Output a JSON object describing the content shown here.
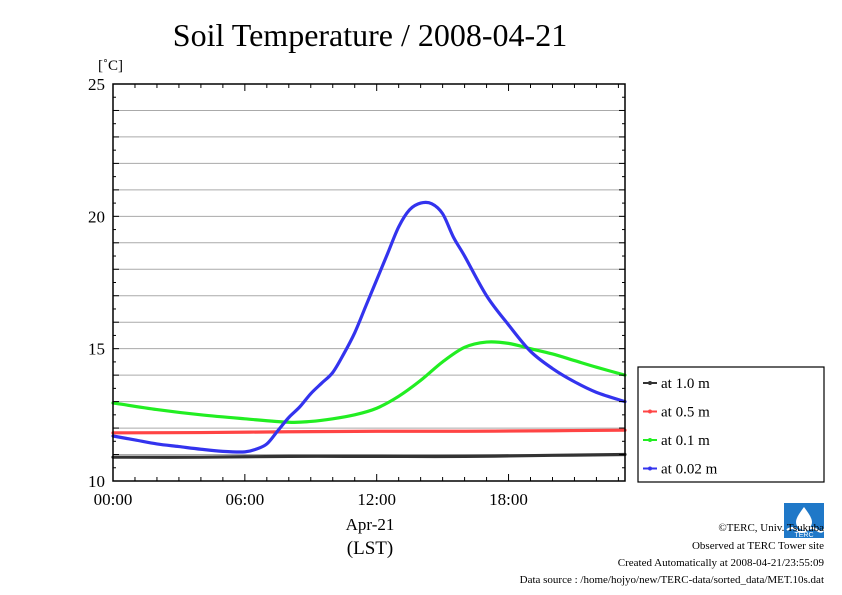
{
  "chart_data": {
    "type": "line",
    "title": "Soil Temperature / 2008-04-21",
    "ylabel": "[˚C]",
    "ylim": [
      10,
      25
    ],
    "xlim": [
      0,
      23.3
    ],
    "yticks": [
      10,
      15,
      20,
      25
    ],
    "xticks": [
      {
        "value": 0,
        "label": "00:00"
      },
      {
        "value": 6,
        "label": "06:00"
      },
      {
        "value": 12,
        "label": "12:00"
      },
      {
        "value": 18,
        "label": "18:00"
      }
    ],
    "xlabel_date": "Apr-21",
    "xlabel_zone": "(LST)",
    "grid": true,
    "legend_position": "right",
    "series": [
      {
        "name": "at 1.0 m",
        "color": "#333333",
        "x": [
          0,
          4,
          8,
          12,
          16,
          20,
          23.3
        ],
        "y": [
          10.9,
          10.9,
          10.93,
          10.93,
          10.93,
          10.97,
          11.0
        ]
      },
      {
        "name": "at 0.5 m",
        "color": "#ff4444",
        "x": [
          0,
          4,
          8,
          12,
          16,
          20,
          23.3
        ],
        "y": [
          11.82,
          11.83,
          11.86,
          11.88,
          11.88,
          11.9,
          11.92
        ]
      },
      {
        "name": "at 0.1 m",
        "color": "#22ee22",
        "x": [
          0,
          2,
          4,
          6,
          8,
          9,
          10,
          11,
          12,
          13,
          14,
          15,
          16,
          17,
          18,
          19,
          20,
          21,
          22,
          23.3
        ],
        "y": [
          12.95,
          12.7,
          12.5,
          12.35,
          12.22,
          12.25,
          12.35,
          12.5,
          12.75,
          13.2,
          13.8,
          14.5,
          15.05,
          15.25,
          15.2,
          15.0,
          14.8,
          14.55,
          14.3,
          14.0
        ]
      },
      {
        "name": "at 0.02 m",
        "color": "#3333ee",
        "x": [
          0,
          1,
          2,
          3,
          4,
          5,
          6,
          6.5,
          7,
          7.5,
          8,
          8.5,
          9,
          9.5,
          10,
          10.5,
          11,
          11.5,
          12,
          12.5,
          13,
          13.5,
          14,
          14.5,
          15,
          15.5,
          16,
          17,
          18,
          19,
          20,
          21,
          22,
          23.3
        ],
        "y": [
          11.7,
          11.55,
          11.4,
          11.3,
          11.2,
          11.12,
          11.1,
          11.2,
          11.4,
          11.9,
          12.4,
          12.8,
          13.3,
          13.7,
          14.1,
          14.8,
          15.6,
          16.6,
          17.6,
          18.6,
          19.6,
          20.25,
          20.5,
          20.48,
          20.1,
          19.2,
          18.5,
          17.0,
          15.9,
          14.9,
          14.25,
          13.75,
          13.35,
          13.0
        ]
      }
    ]
  },
  "footer": {
    "copyright": "©TERC, Univ. Tsukuba",
    "observed": "Observed at TERC Tower site",
    "created": "Created Automatically at 2008-04-21/23:55:09",
    "source": "Data source : /home/hojyo/new/TERC-data/sorted_data/MET.10s.dat",
    "logo_text": "TERC"
  }
}
